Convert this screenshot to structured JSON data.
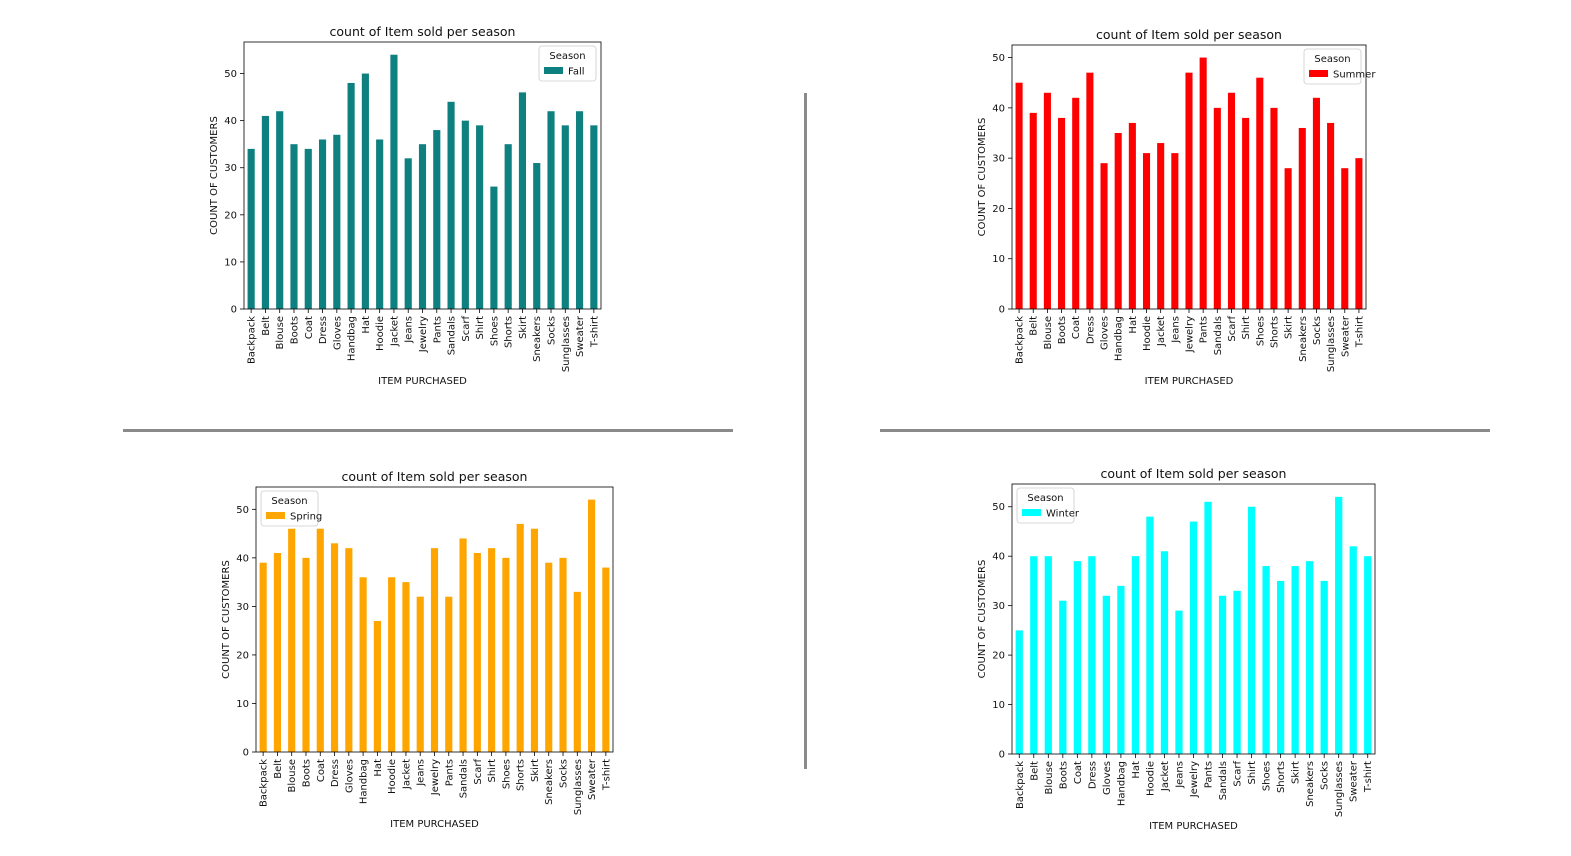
{
  "chart_data": [
    {
      "type": "bar",
      "title": "count of Item sold per season",
      "xlabel": "ITEM PURCHASED",
      "ylabel": "COUNT OF CUSTOMERS",
      "ylim": [
        0,
        56.7
      ],
      "yticks": [
        0,
        10,
        20,
        30,
        40,
        50
      ],
      "grid": false,
      "legend": {
        "title": "Season",
        "position": "top-right"
      },
      "categories": [
        "Backpack",
        "Belt",
        "Blouse",
        "Boots",
        "Coat",
        "Dress",
        "Gloves",
        "Handbag",
        "Hat",
        "Hoodie",
        "Jacket",
        "Jeans",
        "Jewelry",
        "Pants",
        "Sandals",
        "Scarf",
        "Shirt",
        "Shoes",
        "Shorts",
        "Skirt",
        "Sneakers",
        "Socks",
        "Sunglasses",
        "Sweater",
        "T-shirt"
      ],
      "series": [
        {
          "name": "Fall",
          "color": "#0f8080",
          "values": [
            34,
            41,
            42,
            35,
            34,
            36,
            37,
            48,
            50,
            36,
            54,
            32,
            35,
            38,
            44,
            40,
            39,
            26,
            35,
            46,
            31,
            42,
            39,
            42,
            39
          ]
        }
      ]
    },
    {
      "type": "bar",
      "title": "count of Item sold per season",
      "xlabel": "ITEM PURCHASED",
      "ylabel": "COUNT OF CUSTOMERS",
      "ylim": [
        0,
        52.5
      ],
      "yticks": [
        0,
        10,
        20,
        30,
        40,
        50
      ],
      "grid": false,
      "legend": {
        "title": "Season",
        "position": "top-right"
      },
      "categories": [
        "Backpack",
        "Belt",
        "Blouse",
        "Boots",
        "Coat",
        "Dress",
        "Gloves",
        "Handbag",
        "Hat",
        "Hoodie",
        "Jacket",
        "Jeans",
        "Jewelry",
        "Pants",
        "Sandals",
        "Scarf",
        "Shirt",
        "Shoes",
        "Shorts",
        "Skirt",
        "Sneakers",
        "Socks",
        "Sunglasses",
        "Sweater",
        "T-shirt"
      ],
      "series": [
        {
          "name": "Summer",
          "color": "#ff0000",
          "values": [
            45,
            39,
            43,
            38,
            42,
            47,
            29,
            35,
            37,
            31,
            33,
            31,
            47,
            50,
            40,
            43,
            38,
            46,
            40,
            28,
            36,
            42,
            37,
            28,
            30
          ]
        }
      ]
    },
    {
      "type": "bar",
      "title": "count of Item sold per season",
      "xlabel": "ITEM PURCHASED",
      "ylabel": "COUNT OF CUSTOMERS",
      "ylim": [
        0,
        54.6
      ],
      "yticks": [
        0,
        10,
        20,
        30,
        40,
        50
      ],
      "grid": false,
      "legend": {
        "title": "Season",
        "position": "top-left"
      },
      "categories": [
        "Backpack",
        "Belt",
        "Blouse",
        "Boots",
        "Coat",
        "Dress",
        "Gloves",
        "Handbag",
        "Hat",
        "Hoodie",
        "Jacket",
        "Jeans",
        "Jewelry",
        "Pants",
        "Sandals",
        "Scarf",
        "Shirt",
        "Shoes",
        "Shorts",
        "Skirt",
        "Sneakers",
        "Socks",
        "Sunglasses",
        "Sweater",
        "T-shirt"
      ],
      "series": [
        {
          "name": "Spring",
          "color": "#ffa500",
          "values": [
            39,
            41,
            46,
            40,
            46,
            43,
            42,
            36,
            27,
            36,
            35,
            32,
            42,
            32,
            44,
            41,
            42,
            40,
            47,
            46,
            39,
            40,
            33,
            52,
            38
          ]
        }
      ]
    },
    {
      "type": "bar",
      "title": "count of Item sold per season",
      "xlabel": "ITEM PURCHASED",
      "ylabel": "COUNT OF CUSTOMERS",
      "ylim": [
        0,
        54.6
      ],
      "yticks": [
        0,
        10,
        20,
        30,
        40,
        50
      ],
      "grid": false,
      "legend": {
        "title": "Season",
        "position": "top-left"
      },
      "categories": [
        "Backpack",
        "Belt",
        "Blouse",
        "Boots",
        "Coat",
        "Dress",
        "Gloves",
        "Handbag",
        "Hat",
        "Hoodie",
        "Jacket",
        "Jeans",
        "Jewelry",
        "Pants",
        "Sandals",
        "Scarf",
        "Shirt",
        "Shoes",
        "Shorts",
        "Skirt",
        "Sneakers",
        "Socks",
        "Sunglasses",
        "Sweater",
        "T-shirt"
      ],
      "series": [
        {
          "name": "Winter",
          "color": "#00ffff",
          "values": [
            25,
            40,
            40,
            31,
            39,
            40,
            32,
            34,
            40,
            48,
            41,
            29,
            47,
            51,
            32,
            33,
            50,
            38,
            35,
            38,
            39,
            35,
            52,
            42,
            40
          ]
        }
      ]
    }
  ]
}
